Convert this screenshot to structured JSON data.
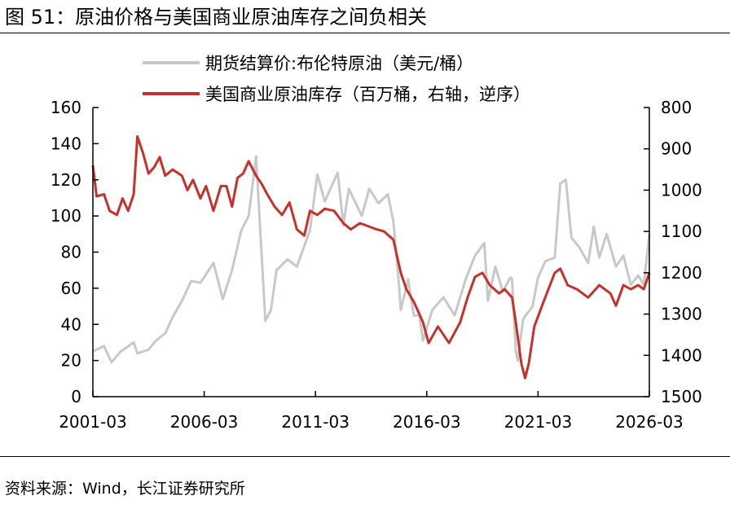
{
  "figure": {
    "title": "图 51：原油价格与美国商业原油库存之间负相关",
    "source": "资料来源：Wind，长江证券研究所"
  },
  "colors": {
    "price": "#c8c8c8",
    "inventory": "#c8302a",
    "axis": "#000000"
  },
  "chart_data": {
    "type": "line",
    "title": "",
    "xlabel": "",
    "ylabel": "",
    "x_ticks": [
      "2001-03",
      "2006-03",
      "2011-03",
      "2016-03",
      "2021-03",
      "2026-03"
    ],
    "x_range": [
      "2001-03",
      "2026-03"
    ],
    "y_left": {
      "range": [
        0,
        160
      ],
      "ticks": [
        0,
        20,
        40,
        60,
        80,
        100,
        120,
        140,
        160
      ]
    },
    "y_right": {
      "range": [
        800,
        1500
      ],
      "reversed": true,
      "ticks": [
        800,
        900,
        1000,
        1100,
        1200,
        1300,
        1400,
        1500
      ]
    },
    "grid": false,
    "legend_position": "top",
    "series": [
      {
        "name": "期货结算价:布伦特原油（美元/桶）",
        "axis": "left",
        "points": [
          [
            "2001-03",
            25
          ],
          [
            "2001-09",
            28
          ],
          [
            "2002-01",
            19
          ],
          [
            "2002-06",
            25
          ],
          [
            "2003-01",
            30
          ],
          [
            "2003-03",
            24
          ],
          [
            "2003-09",
            26
          ],
          [
            "2004-01",
            31
          ],
          [
            "2004-06",
            35
          ],
          [
            "2004-10",
            44
          ],
          [
            "2005-03",
            53
          ],
          [
            "2005-08",
            64
          ],
          [
            "2006-01",
            63
          ],
          [
            "2006-08",
            74
          ],
          [
            "2007-01",
            54
          ],
          [
            "2007-06",
            70
          ],
          [
            "2007-11",
            92
          ],
          [
            "2008-03",
            100
          ],
          [
            "2008-07",
            133
          ],
          [
            "2008-12",
            42
          ],
          [
            "2009-03",
            48
          ],
          [
            "2009-06",
            70
          ],
          [
            "2009-12",
            76
          ],
          [
            "2010-05",
            72
          ],
          [
            "2010-12",
            92
          ],
          [
            "2011-04",
            123
          ],
          [
            "2011-08",
            108
          ],
          [
            "2012-03",
            124
          ],
          [
            "2012-06",
            95
          ],
          [
            "2012-09",
            115
          ],
          [
            "2013-04",
            100
          ],
          [
            "2013-08",
            115
          ],
          [
            "2014-01",
            107
          ],
          [
            "2014-06",
            112
          ],
          [
            "2014-09",
            97
          ],
          [
            "2014-12",
            62
          ],
          [
            "2015-01",
            48
          ],
          [
            "2015-05",
            65
          ],
          [
            "2015-08",
            45
          ],
          [
            "2015-11",
            45
          ],
          [
            "2016-01",
            31
          ],
          [
            "2016-06",
            48
          ],
          [
            "2016-12",
            55
          ],
          [
            "2017-06",
            45
          ],
          [
            "2017-12",
            65
          ],
          [
            "2018-05",
            78
          ],
          [
            "2018-10",
            85
          ],
          [
            "2018-12",
            53
          ],
          [
            "2019-04",
            72
          ],
          [
            "2019-08",
            58
          ],
          [
            "2019-12",
            66
          ],
          [
            "2020-01",
            65
          ],
          [
            "2020-03",
            25
          ],
          [
            "2020-04",
            20
          ],
          [
            "2020-07",
            43
          ],
          [
            "2020-12",
            50
          ],
          [
            "2021-03",
            66
          ],
          [
            "2021-07",
            75
          ],
          [
            "2021-12",
            77
          ],
          [
            "2022-03",
            118
          ],
          [
            "2022-06",
            120
          ],
          [
            "2022-09",
            88
          ],
          [
            "2023-01",
            83
          ],
          [
            "2023-06",
            74
          ],
          [
            "2023-09",
            94
          ],
          [
            "2023-12",
            77
          ],
          [
            "2024-04",
            90
          ],
          [
            "2024-09",
            72
          ],
          [
            "2025-01",
            78
          ],
          [
            "2025-05",
            62
          ],
          [
            "2025-09",
            67
          ],
          [
            "2025-12",
            62
          ],
          [
            "2026-03",
            90
          ]
        ]
      },
      {
        "name": "美国商业原油库存（百万桶，右轴，逆序）",
        "axis": "right",
        "points": [
          [
            "2001-03",
            940
          ],
          [
            "2001-05",
            1015
          ],
          [
            "2001-09",
            1010
          ],
          [
            "2001-12",
            1050
          ],
          [
            "2002-04",
            1060
          ],
          [
            "2002-07",
            1020
          ],
          [
            "2002-10",
            1050
          ],
          [
            "2003-01",
            1010
          ],
          [
            "2003-03",
            870
          ],
          [
            "2003-06",
            910
          ],
          [
            "2003-09",
            960
          ],
          [
            "2003-12",
            945
          ],
          [
            "2004-03",
            920
          ],
          [
            "2004-06",
            965
          ],
          [
            "2004-10",
            950
          ],
          [
            "2005-03",
            965
          ],
          [
            "2005-06",
            1000
          ],
          [
            "2005-09",
            975
          ],
          [
            "2006-01",
            1020
          ],
          [
            "2006-04",
            990
          ],
          [
            "2006-08",
            1050
          ],
          [
            "2006-12",
            990
          ],
          [
            "2007-03",
            990
          ],
          [
            "2007-06",
            1040
          ],
          [
            "2007-09",
            970
          ],
          [
            "2007-12",
            960
          ],
          [
            "2008-03",
            930
          ],
          [
            "2008-07",
            965
          ],
          [
            "2008-10",
            985
          ],
          [
            "2009-01",
            1010
          ],
          [
            "2009-05",
            1040
          ],
          [
            "2009-09",
            1060
          ],
          [
            "2010-01",
            1030
          ],
          [
            "2010-05",
            1095
          ],
          [
            "2010-09",
            1110
          ],
          [
            "2010-12",
            1050
          ],
          [
            "2011-04",
            1060
          ],
          [
            "2011-08",
            1045
          ],
          [
            "2012-01",
            1050
          ],
          [
            "2012-06",
            1080
          ],
          [
            "2012-10",
            1095
          ],
          [
            "2013-03",
            1080
          ],
          [
            "2013-06",
            1085
          ],
          [
            "2013-12",
            1095
          ],
          [
            "2014-04",
            1100
          ],
          [
            "2014-09",
            1120
          ],
          [
            "2015-01",
            1200
          ],
          [
            "2015-04",
            1240
          ],
          [
            "2015-08",
            1270
          ],
          [
            "2016-01",
            1320
          ],
          [
            "2016-04",
            1370
          ],
          [
            "2016-09",
            1330
          ],
          [
            "2017-03",
            1370
          ],
          [
            "2017-09",
            1320
          ],
          [
            "2018-01",
            1260
          ],
          [
            "2018-05",
            1210
          ],
          [
            "2018-09",
            1200
          ],
          [
            "2019-01",
            1230
          ],
          [
            "2019-06",
            1250
          ],
          [
            "2019-09",
            1240
          ],
          [
            "2020-01",
            1260
          ],
          [
            "2020-03",
            1320
          ],
          [
            "2020-06",
            1420
          ],
          [
            "2020-08",
            1455
          ],
          [
            "2020-10",
            1420
          ],
          [
            "2021-01",
            1330
          ],
          [
            "2021-06",
            1270
          ],
          [
            "2021-12",
            1200
          ],
          [
            "2022-03",
            1190
          ],
          [
            "2022-07",
            1230
          ],
          [
            "2022-12",
            1240
          ],
          [
            "2023-06",
            1260
          ],
          [
            "2023-12",
            1230
          ],
          [
            "2024-06",
            1250
          ],
          [
            "2024-09",
            1280
          ],
          [
            "2025-01",
            1230
          ],
          [
            "2025-05",
            1240
          ],
          [
            "2025-09",
            1230
          ],
          [
            "2025-12",
            1240
          ],
          [
            "2026-03",
            1200
          ]
        ]
      }
    ]
  }
}
